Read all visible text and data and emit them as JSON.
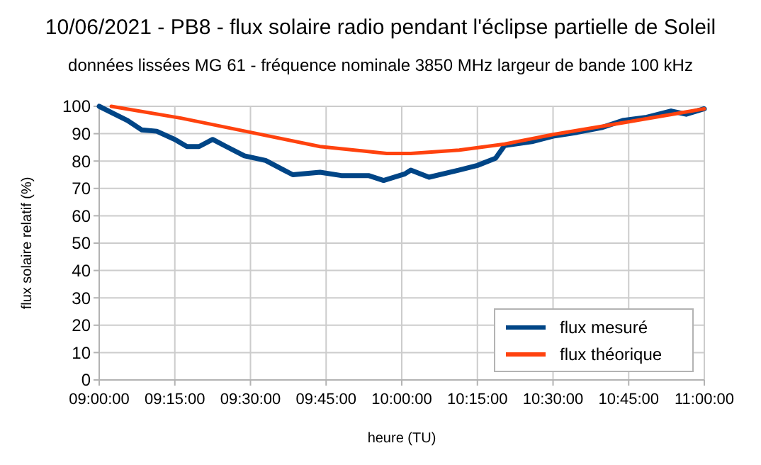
{
  "chart_data": {
    "type": "line",
    "title": "10/06/2021 - PB8 - flux solaire radio pendant l'éclipse partielle de Soleil",
    "subtitle": "données lissées MG 61 - fréquence nominale 3850 MHz  largeur de bande 100 kHz",
    "xlabel": "heure (TU)",
    "ylabel": "flux solaire relatif (%)",
    "xlim": [
      9,
      11
    ],
    "xticks": [
      {
        "value": 9,
        "label": "09:00:00"
      },
      {
        "value": 9.25,
        "label": "09:15:00"
      },
      {
        "value": 9.5,
        "label": "09:30:00"
      },
      {
        "value": 9.75,
        "label": "09:45:00"
      },
      {
        "value": 10,
        "label": "10:00:00"
      },
      {
        "value": 10.25,
        "label": "10:15:00"
      },
      {
        "value": 10.5,
        "label": "10:30:00"
      },
      {
        "value": 10.75,
        "label": "10:45:00"
      },
      {
        "value": 11,
        "label": "11:00:00"
      }
    ],
    "ylim": [
      0,
      100
    ],
    "yticks": [
      0,
      10,
      20,
      30,
      40,
      50,
      60,
      70,
      80,
      90,
      100
    ],
    "grid": true,
    "legend": "bottom right",
    "series": [
      {
        "name": "flux mesuré",
        "color": "#004586",
        "x": [
          9,
          9.047,
          9.094,
          9.14,
          9.19,
          9.25,
          9.29,
          9.33,
          9.375,
          9.42,
          9.48,
          9.55,
          9.61,
          9.64,
          9.73,
          9.8,
          9.89,
          9.94,
          10.01,
          10.03,
          10.09,
          10.19,
          10.25,
          10.31,
          10.34,
          10.43,
          10.5,
          10.58,
          10.66,
          10.73,
          10.81,
          10.89,
          10.94,
          11
        ],
        "values": [
          100,
          97.4,
          94.8,
          91.4,
          90.9,
          87.9,
          85.3,
          85.3,
          87.9,
          85.3,
          81.9,
          80.2,
          76.7,
          75,
          75.9,
          74.7,
          74.7,
          72.9,
          75.3,
          76.7,
          74.1,
          76.7,
          78.4,
          81,
          85.7,
          87.1,
          89.1,
          90.5,
          92.2,
          94.8,
          96,
          98.3,
          97.1,
          99.1
        ]
      },
      {
        "name": "flux théorique",
        "color": "#ff420e",
        "x": [
          9.04,
          9.27,
          9.5,
          9.73,
          9.95,
          10.03,
          10.19,
          10.34,
          10.5,
          10.73,
          11
        ],
        "values": [
          100,
          95.7,
          90.5,
          85.3,
          82.8,
          82.8,
          84,
          86.2,
          89.7,
          94,
          99.1
        ]
      }
    ]
  }
}
